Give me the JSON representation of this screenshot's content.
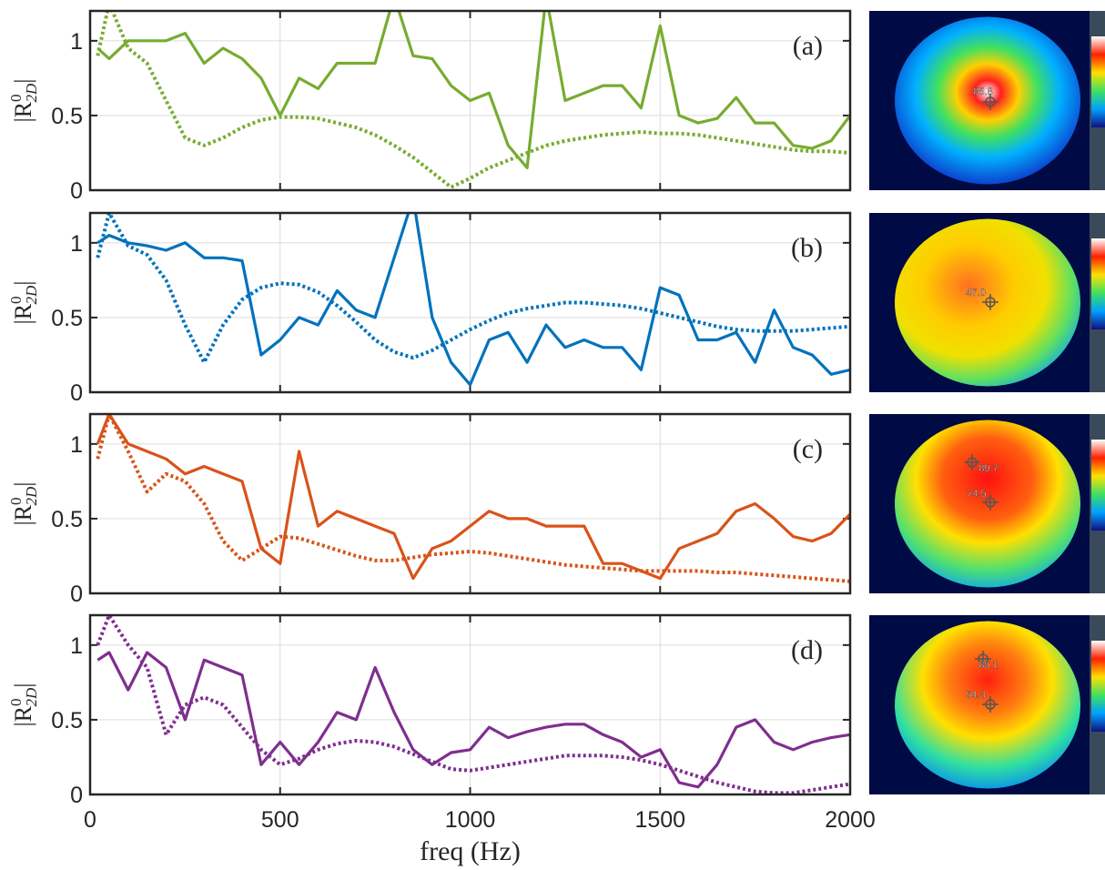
{
  "chart_data": [
    {
      "type": "line",
      "panel_label": "(a)",
      "ylabel": [
        "|R",
        "0",
        "2D",
        "|"
      ],
      "image_labels": [
        "85.8"
      ],
      "x": [
        20,
        50,
        100,
        150,
        200,
        250,
        300,
        350,
        400,
        450,
        500,
        550,
        600,
        650,
        700,
        750,
        800,
        850,
        900,
        950,
        1000,
        1050,
        1100,
        1150,
        1200,
        1250,
        1300,
        1350,
        1400,
        1450,
        1500,
        1550,
        1600,
        1650,
        1700,
        1750,
        1800,
        1850,
        1900,
        1950,
        2000
      ],
      "xlim": [
        0,
        2000
      ],
      "ylim": [
        0,
        1.2
      ],
      "xticks": [
        0,
        500,
        1000,
        1500,
        2000
      ],
      "yticks": [
        0,
        0.5,
        1
      ],
      "grid": true,
      "series": [
        {
          "color": "#77ac30",
          "style": "solid",
          "values": [
            0.95,
            0.88,
            1.0,
            1.0,
            1.0,
            1.05,
            0.85,
            0.95,
            0.88,
            0.75,
            0.5,
            0.75,
            0.68,
            0.85,
            0.85,
            0.85,
            1.3,
            0.9,
            0.88,
            0.7,
            0.6,
            0.65,
            0.3,
            0.15,
            1.3,
            0.6,
            0.65,
            0.7,
            0.7,
            0.55,
            1.1,
            0.5,
            0.45,
            0.48,
            0.62,
            0.45,
            0.45,
            0.3,
            0.28,
            0.33,
            0.5
          ]
        },
        {
          "color": "#77ac30",
          "style": "dotted",
          "values": [
            0.9,
            1.25,
            0.95,
            0.85,
            0.6,
            0.35,
            0.3,
            0.35,
            0.42,
            0.47,
            0.49,
            0.49,
            0.48,
            0.45,
            0.42,
            0.37,
            0.3,
            0.22,
            0.12,
            0.02,
            0.08,
            0.15,
            0.2,
            0.25,
            0.3,
            0.33,
            0.35,
            0.37,
            0.38,
            0.39,
            0.38,
            0.38,
            0.37,
            0.35,
            0.33,
            0.31,
            0.29,
            0.27,
            0.26,
            0.26,
            0.25
          ]
        }
      ]
    },
    {
      "type": "line",
      "panel_label": "(b)",
      "ylabel": [
        "|R",
        "0",
        "2D",
        "|"
      ],
      "image_labels": [
        "47.0"
      ],
      "x": [
        20,
        50,
        100,
        150,
        200,
        250,
        300,
        350,
        400,
        450,
        500,
        550,
        600,
        650,
        700,
        750,
        800,
        850,
        900,
        950,
        1000,
        1050,
        1100,
        1150,
        1200,
        1250,
        1300,
        1350,
        1400,
        1450,
        1500,
        1550,
        1600,
        1650,
        1700,
        1750,
        1800,
        1850,
        1900,
        1950,
        2000
      ],
      "xlim": [
        0,
        2000
      ],
      "ylim": [
        0,
        1.2
      ],
      "xticks": [
        0,
        500,
        1000,
        1500,
        2000
      ],
      "yticks": [
        0,
        0.5,
        1
      ],
      "grid": true,
      "series": [
        {
          "color": "#0072bd",
          "style": "solid",
          "values": [
            1.0,
            1.05,
            1.0,
            0.98,
            0.95,
            1.0,
            0.9,
            0.9,
            0.88,
            0.25,
            0.35,
            0.5,
            0.45,
            0.68,
            0.55,
            0.5,
            0.9,
            1.3,
            0.5,
            0.2,
            0.05,
            0.35,
            0.4,
            0.2,
            0.45,
            0.3,
            0.35,
            0.3,
            0.3,
            0.15,
            0.7,
            0.65,
            0.35,
            0.35,
            0.4,
            0.2,
            0.55,
            0.3,
            0.25,
            0.12,
            0.15
          ]
        },
        {
          "color": "#0072bd",
          "style": "dotted",
          "values": [
            0.9,
            1.2,
            0.98,
            0.92,
            0.75,
            0.45,
            0.2,
            0.45,
            0.62,
            0.7,
            0.73,
            0.72,
            0.67,
            0.58,
            0.47,
            0.35,
            0.27,
            0.23,
            0.28,
            0.35,
            0.42,
            0.48,
            0.53,
            0.56,
            0.58,
            0.6,
            0.6,
            0.59,
            0.58,
            0.56,
            0.53,
            0.5,
            0.47,
            0.44,
            0.42,
            0.41,
            0.41,
            0.41,
            0.42,
            0.43,
            0.44
          ]
        }
      ]
    },
    {
      "type": "line",
      "panel_label": "(c)",
      "ylabel": [
        "|R",
        "0",
        "2D",
        "|"
      ],
      "image_labels": [
        "89.7",
        "74.5"
      ],
      "x": [
        20,
        50,
        100,
        150,
        200,
        250,
        300,
        350,
        400,
        450,
        500,
        550,
        600,
        650,
        700,
        750,
        800,
        850,
        900,
        950,
        1000,
        1050,
        1100,
        1150,
        1200,
        1250,
        1300,
        1350,
        1400,
        1450,
        1500,
        1550,
        1600,
        1650,
        1700,
        1750,
        1800,
        1850,
        1900,
        1950,
        2000
      ],
      "xlim": [
        0,
        2000
      ],
      "ylim": [
        0,
        1.2
      ],
      "xticks": [
        0,
        500,
        1000,
        1500,
        2000
      ],
      "yticks": [
        0,
        0.5,
        1
      ],
      "grid": true,
      "series": [
        {
          "color": "#d95319",
          "style": "solid",
          "values": [
            1.0,
            1.2,
            1.0,
            0.95,
            0.9,
            0.8,
            0.85,
            0.8,
            0.75,
            0.3,
            0.2,
            0.95,
            0.45,
            0.55,
            0.5,
            0.45,
            0.4,
            0.1,
            0.3,
            0.35,
            0.45,
            0.55,
            0.5,
            0.5,
            0.45,
            0.45,
            0.45,
            0.2,
            0.2,
            0.15,
            0.1,
            0.3,
            0.35,
            0.4,
            0.55,
            0.6,
            0.5,
            0.38,
            0.35,
            0.4,
            0.53
          ]
        },
        {
          "color": "#d95319",
          "style": "dotted",
          "values": [
            0.9,
            1.2,
            0.95,
            0.68,
            0.8,
            0.75,
            0.6,
            0.35,
            0.22,
            0.3,
            0.38,
            0.37,
            0.33,
            0.29,
            0.25,
            0.22,
            0.22,
            0.24,
            0.26,
            0.27,
            0.28,
            0.27,
            0.25,
            0.23,
            0.21,
            0.19,
            0.18,
            0.17,
            0.16,
            0.15,
            0.15,
            0.15,
            0.15,
            0.14,
            0.14,
            0.13,
            0.12,
            0.11,
            0.1,
            0.09,
            0.08
          ]
        }
      ]
    },
    {
      "type": "line",
      "panel_label": "(d)",
      "ylabel": [
        "|R",
        "0",
        "2D",
        "|"
      ],
      "image_labels": [
        "85.1",
        "54.3"
      ],
      "xlabel": "freq (Hz)",
      "xtick_labels": true,
      "x": [
        20,
        50,
        100,
        150,
        200,
        250,
        300,
        350,
        400,
        450,
        500,
        550,
        600,
        650,
        700,
        750,
        800,
        850,
        900,
        950,
        1000,
        1050,
        1100,
        1150,
        1200,
        1250,
        1300,
        1350,
        1400,
        1450,
        1500,
        1550,
        1600,
        1650,
        1700,
        1750,
        1800,
        1850,
        1900,
        1950,
        2000
      ],
      "xlim": [
        0,
        2000
      ],
      "ylim": [
        0,
        1.2
      ],
      "xticks": [
        0,
        500,
        1000,
        1500,
        2000
      ],
      "yticks": [
        0,
        0.5,
        1
      ],
      "grid": true,
      "series": [
        {
          "color": "#7e2f8e",
          "style": "solid",
          "values": [
            0.9,
            0.95,
            0.7,
            0.95,
            0.85,
            0.5,
            0.9,
            0.85,
            0.8,
            0.2,
            0.35,
            0.2,
            0.35,
            0.55,
            0.5,
            0.85,
            0.55,
            0.3,
            0.2,
            0.28,
            0.3,
            0.45,
            0.38,
            0.42,
            0.45,
            0.47,
            0.47,
            0.4,
            0.35,
            0.25,
            0.3,
            0.08,
            0.05,
            0.2,
            0.45,
            0.5,
            0.35,
            0.3,
            0.35,
            0.38,
            0.4
          ]
        },
        {
          "color": "#7e2f8e",
          "style": "dotted",
          "values": [
            1.0,
            1.2,
            1.0,
            0.85,
            0.4,
            0.6,
            0.65,
            0.6,
            0.45,
            0.3,
            0.2,
            0.24,
            0.3,
            0.34,
            0.36,
            0.35,
            0.32,
            0.27,
            0.22,
            0.17,
            0.16,
            0.18,
            0.2,
            0.22,
            0.24,
            0.26,
            0.26,
            0.26,
            0.25,
            0.23,
            0.2,
            0.16,
            0.12,
            0.08,
            0.05,
            0.02,
            0.01,
            0.01,
            0.03,
            0.05,
            0.07
          ]
        }
      ]
    }
  ]
}
